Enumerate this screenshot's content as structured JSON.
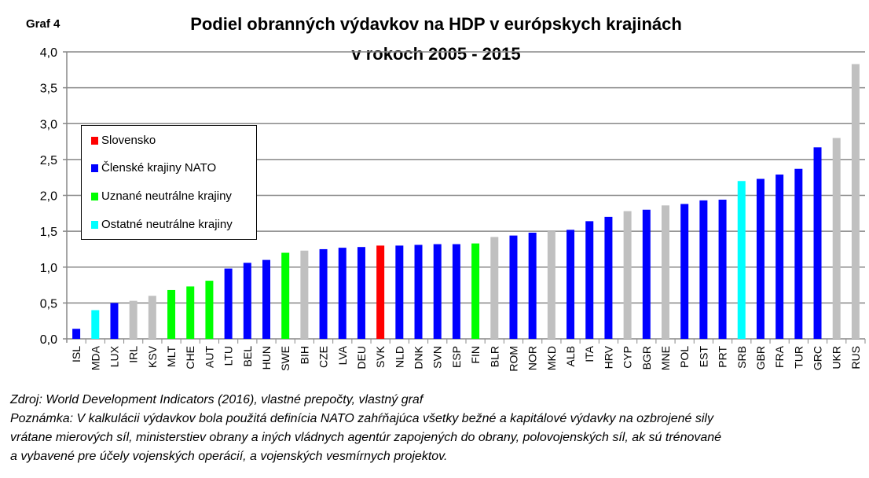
{
  "chart_data": {
    "type": "bar",
    "label": "Graf 4",
    "title": [
      "Podiel obranných výdavkov na HDP v európskych krajinách",
      "v rokoch 2005 - 2015"
    ],
    "ylim": [
      0,
      4
    ],
    "yticks": [
      "0,0",
      "0,5",
      "1,0",
      "1,5",
      "2,0",
      "2,5",
      "3,0",
      "3,5",
      "4,0"
    ],
    "grid": true,
    "legend_position": "top-left",
    "legend": [
      {
        "label": "Slovensko",
        "color": "#ff0000"
      },
      {
        "label": "Členské krajiny NATO",
        "color": "#0000ff"
      },
      {
        "label": "Uznané neutrálne krajiny",
        "color": "#00ff00"
      },
      {
        "label": "Ostatné neutrálne krajiny",
        "color": "#00ffff"
      }
    ],
    "other_color": "#c0c0c0",
    "categories": [
      "ISL",
      "MDA",
      "LUX",
      "IRL",
      "KSV",
      "MLT",
      "CHE",
      "AUT",
      "LTU",
      "BEL",
      "HUN",
      "SWE",
      "BIH",
      "CZE",
      "LVA",
      "DEU",
      "SVK",
      "NLD",
      "DNK",
      "SVN",
      "ESP",
      "FIN",
      "BLR",
      "ROM",
      "NOR",
      "MKD",
      "ALB",
      "ITA",
      "HRV",
      "CYP",
      "BGR",
      "MNE",
      "POL",
      "EST",
      "PRT",
      "SRB",
      "GBR",
      "FRA",
      "TUR",
      "GRC",
      "UKR",
      "RUS"
    ],
    "values": [
      0.14,
      0.4,
      0.5,
      0.53,
      0.6,
      0.68,
      0.73,
      0.81,
      0.98,
      1.06,
      1.1,
      1.2,
      1.23,
      1.25,
      1.27,
      1.28,
      1.3,
      1.3,
      1.31,
      1.32,
      1.32,
      1.33,
      1.42,
      1.44,
      1.48,
      1.5,
      1.52,
      1.64,
      1.7,
      1.78,
      1.8,
      1.86,
      1.88,
      1.93,
      1.94,
      2.2,
      2.23,
      2.29,
      2.37,
      2.67,
      2.8,
      3.83
    ],
    "groups": [
      "nato",
      "other_neutral",
      "nato",
      "other",
      "other",
      "neutral",
      "neutral",
      "neutral",
      "nato",
      "nato",
      "nato",
      "neutral",
      "other",
      "nato",
      "nato",
      "nato",
      "svk",
      "nato",
      "nato",
      "nato",
      "nato",
      "neutral",
      "other",
      "nato",
      "nato",
      "other",
      "nato",
      "nato",
      "nato",
      "other",
      "nato",
      "other",
      "nato",
      "nato",
      "nato",
      "other_neutral",
      "nato",
      "nato",
      "nato",
      "nato",
      "other",
      "other"
    ]
  },
  "notes": [
    "Zdroj: World Development Indicators (2016), vlastné prepočty, vlastný graf",
    "Poznámka: V kalkulácii výdavkov bola použitá definícia NATO zahŕňajúca všetky bežné a kapitálové výdavky na ozbrojené sily",
    "vrátane mierových síl, ministerstiev obrany a iných vládnych agentúr zapojených do obrany, polovojenských síl, ak sú trénované",
    "a vybavené pre účely vojenských operácií, a vojenských vesmírnych projektov."
  ]
}
